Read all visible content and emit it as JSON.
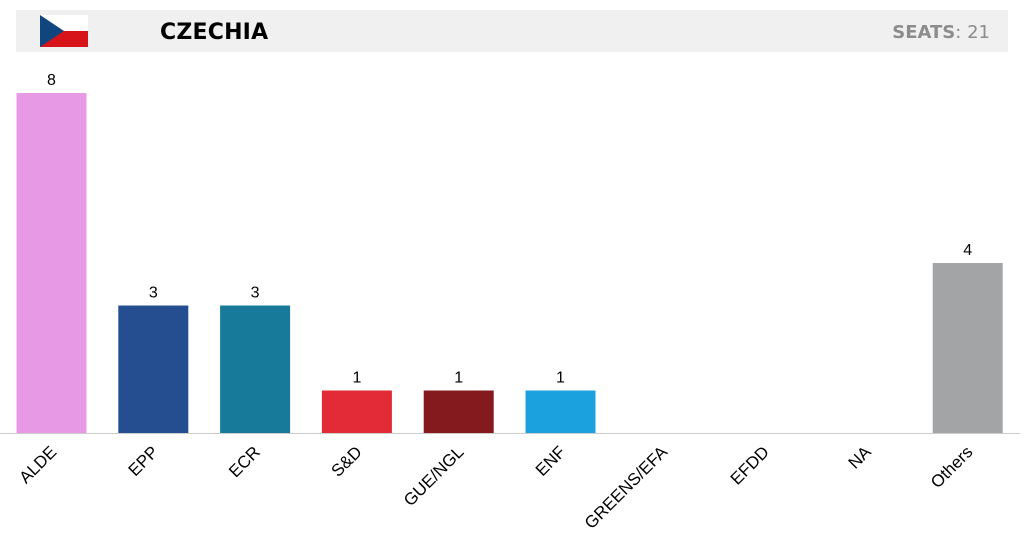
{
  "header": {
    "country": "CZECHIA",
    "seats_label": "SEATS",
    "seats_separator": ":",
    "seats_value": "21",
    "flag_icon": "czech-flag-icon"
  },
  "colors": {
    "header_bg": "#f0f0f0",
    "axis": "#cccccc",
    "flag_white": "#ffffff",
    "flag_red": "#d7141a",
    "flag_blue": "#11457e"
  },
  "chart_data": {
    "type": "bar",
    "title": "",
    "xlabel": "",
    "ylabel": "",
    "ylim": [
      0,
      8
    ],
    "grid": false,
    "categories": [
      "ALDE",
      "EPP",
      "ECR",
      "S&D",
      "GUE/NGL",
      "ENF",
      "GREENS/EFA",
      "EFDD",
      "NA",
      "Others"
    ],
    "values": [
      8,
      3,
      3,
      1,
      1,
      1,
      0,
      0,
      0,
      4
    ],
    "colors": [
      "#e899e6",
      "#254e90",
      "#187a9b",
      "#e22b36",
      "#851a1e",
      "#1ba2de",
      "#57b45c",
      "#2eb2b2",
      "#999999",
      "#a3a4a5"
    ]
  }
}
